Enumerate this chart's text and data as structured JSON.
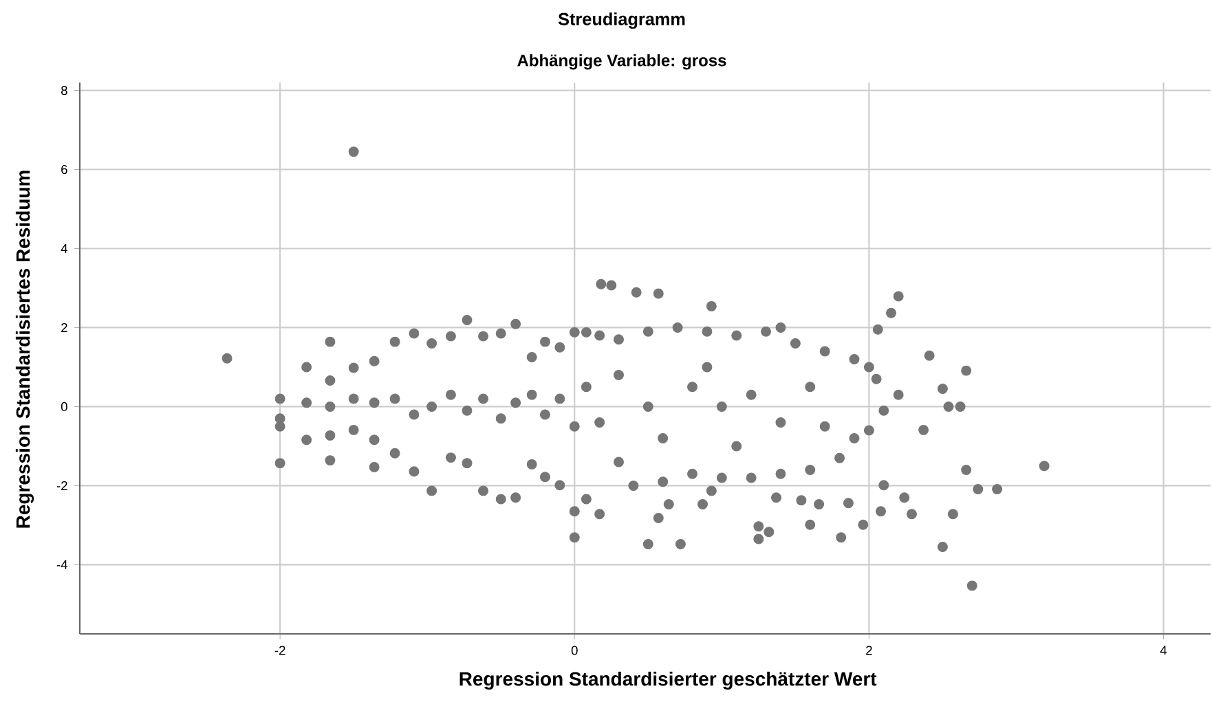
{
  "chart_data": {
    "type": "scatter",
    "title": "Streudiagramm",
    "subtitle": "Abhängige Variable: gross",
    "xlabel": "Regression Standardisierter geschätzter Wert",
    "ylabel": "Regression Standardisiertes Residuum",
    "xlim": [
      -3.36,
      4.32
    ],
    "ylim": [
      -5.75,
      8.2
    ],
    "xticks": [
      -2,
      0,
      2,
      4
    ],
    "yticks": [
      -4,
      -2,
      0,
      2,
      4,
      6,
      8
    ],
    "grid": true,
    "marker": "circle",
    "series": [
      {
        "color": "#767676",
        "x": [
          -2.36,
          -1.5,
          -2.0,
          -2.0,
          -2.0,
          -2.0,
          -1.82,
          -1.82,
          -1.82,
          -1.66,
          -1.66,
          -1.66,
          -1.66,
          -1.66,
          -1.5,
          -1.5,
          -1.5,
          -1.36,
          -1.36,
          -1.36,
          -1.36,
          -1.22,
          -1.22,
          -1.22,
          -1.09,
          -1.09,
          -1.09,
          -0.97,
          -0.97,
          -0.97,
          -0.84,
          -0.84,
          -0.84,
          -0.73,
          -0.73,
          -0.73,
          -0.62,
          -0.62,
          -0.62,
          -0.5,
          -0.5,
          -0.5,
          -0.4,
          -0.4,
          -0.4,
          -0.29,
          -0.29,
          -0.29,
          -0.2,
          -0.2,
          -0.2,
          -0.1,
          -0.1,
          -0.1,
          0.0,
          0.0,
          0.0,
          0.0,
          0.08,
          0.08,
          0.08,
          0.17,
          0.17,
          0.17,
          0.18,
          0.25,
          0.42,
          0.57,
          0.93,
          2.2,
          2.15,
          2.06,
          2.41,
          2.66,
          2.5,
          2.54,
          2.62,
          2.37,
          3.19,
          2.66,
          2.74,
          2.87,
          2.57,
          2.5,
          2.7,
          2.29,
          2.08,
          1.96,
          1.81,
          1.6,
          1.25,
          1.25,
          1.32,
          0.72,
          0.5,
          0.57,
          0.64,
          0.87,
          0.93,
          1.37,
          1.54,
          1.66,
          1.86,
          2.1,
          2.24,
          0.3,
          0.5,
          0.7,
          0.9,
          1.1,
          1.3,
          1.4,
          1.5,
          1.7,
          1.9,
          2.0,
          2.05,
          2.2,
          2.1,
          2.0,
          1.9,
          1.8,
          1.6,
          1.4,
          1.2,
          1.0,
          0.8,
          0.6,
          0.4,
          0.3,
          0.5,
          0.8,
          1.0,
          1.2,
          1.4,
          1.6,
          0.6,
          1.1,
          1.7,
          0.9,
          0.3
        ],
        "values": [
          1.22,
          6.45,
          0.2,
          -0.3,
          -0.5,
          -1.43,
          1.0,
          0.1,
          -0.84,
          1.64,
          0.66,
          0.0,
          -0.73,
          -1.36,
          0.98,
          0.2,
          -0.59,
          1.15,
          0.1,
          -0.84,
          -1.53,
          1.64,
          0.2,
          -1.18,
          1.85,
          -0.2,
          -1.64,
          1.6,
          0.0,
          -2.13,
          1.78,
          0.3,
          -1.29,
          2.19,
          -0.1,
          -1.43,
          1.78,
          0.2,
          -2.13,
          1.85,
          -0.3,
          -2.34,
          2.09,
          0.1,
          -2.3,
          1.25,
          0.3,
          -1.46,
          1.64,
          -0.2,
          -1.78,
          1.5,
          0.2,
          -1.99,
          1.88,
          -0.5,
          -2.65,
          -3.31,
          1.88,
          0.5,
          -2.34,
          1.8,
          -0.4,
          -2.72,
          3.1,
          3.07,
          2.89,
          2.86,
          2.54,
          2.79,
          2.37,
          1.95,
          1.29,
          0.91,
          0.45,
          0.0,
          0.0,
          -0.59,
          -1.5,
          -1.6,
          -2.09,
          -2.09,
          -2.72,
          -3.55,
          -4.53,
          -2.72,
          -2.65,
          -2.99,
          -3.31,
          -2.99,
          -3.35,
          -3.03,
          -3.17,
          -3.48,
          -3.48,
          -2.82,
          -2.47,
          -2.47,
          -2.13,
          -2.3,
          -2.37,
          -2.47,
          -2.44,
          -1.99,
          -2.3,
          1.7,
          1.9,
          2.0,
          1.9,
          1.8,
          1.9,
          2.0,
          1.6,
          1.4,
          1.2,
          1.0,
          0.7,
          0.3,
          -0.1,
          -0.6,
          -0.8,
          -1.3,
          -1.6,
          -1.7,
          -1.8,
          -1.8,
          -1.7,
          -1.9,
          -2.0,
          -1.4,
          0.0,
          0.5,
          0.0,
          0.3,
          -0.4,
          0.5,
          -0.8,
          -1.0,
          -0.5,
          1.0,
          0.8
        ]
      }
    ]
  }
}
